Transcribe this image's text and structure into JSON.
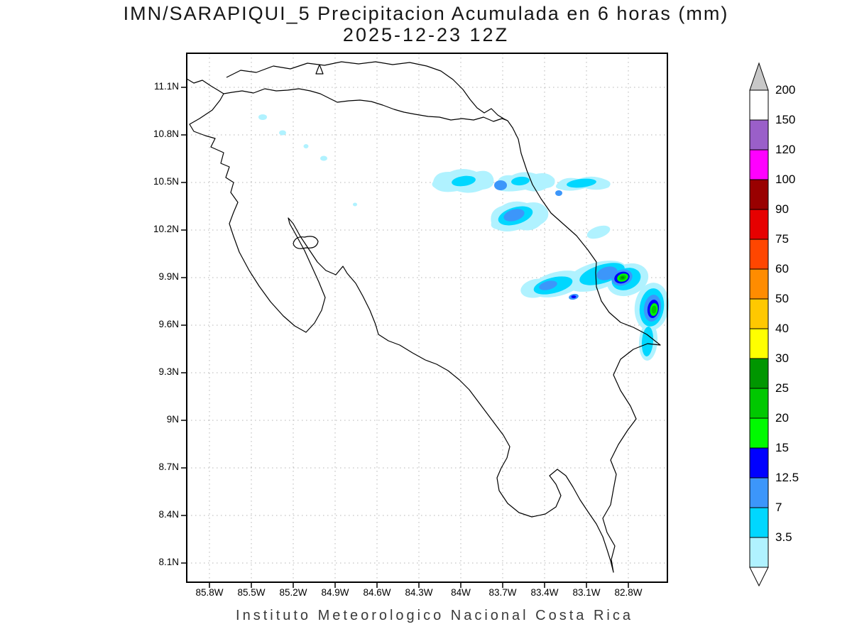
{
  "title": "IMN/SARAPIQUI_5 Precipitacion Acumulada en 6 horas (mm)",
  "subtitle": "2025-12-23 12Z",
  "footer": "Instituto Meteorologico Nacional Costa Rica",
  "map": {
    "lat_ticks": [
      "11.1N",
      "10.8N",
      "10.5N",
      "10.2N",
      "9.9N",
      "9.6N",
      "9.3N",
      "9N",
      "8.7N",
      "8.4N",
      "8.1N"
    ],
    "lon_ticks": [
      "85.8W",
      "85.5W",
      "85.2W",
      "84.9W",
      "84.6W",
      "84.3W",
      "84W",
      "83.7W",
      "83.4W",
      "83.1W",
      "82.8W"
    ],
    "grid_color": "#b4b4b4",
    "coastline_color": "#000000"
  },
  "palette": {
    "lt": "#b0f2ff",
    "cy": "#00d7ff",
    "bl": "#3c96fa",
    "db": "#0000ff",
    "g3": "#00fa00",
    "g2": "#00c800",
    "g1": "#009600"
  },
  "colorbar": {
    "labels_top_to_bottom": [
      "200",
      "150",
      "120",
      "100",
      "90",
      "75",
      "60",
      "50",
      "40",
      "30",
      "25",
      "20",
      "15",
      "12.5",
      "7",
      "3.5"
    ],
    "band_colors_top_to_bottom": [
      "#ffffff",
      "#9a5fc9",
      "#ff00ff",
      "#990000",
      "#e60000",
      "#ff4600",
      "#ff8c00",
      "#ffc800",
      "#ffff00",
      "#009600",
      "#00c800",
      "#00fa00",
      "#0000ff",
      "#3c96fa",
      "#00d7ff",
      "#b0f2ff"
    ],
    "arrow_top_color": "#c8c8c8",
    "arrow_bottom_color": "#ffffff"
  },
  "chart_data": {
    "type": "heatmap",
    "subtype": "filled-contour precipitation map over coastline outline",
    "model": "IMN/SARAPIQUI_5",
    "variable": "Precipitacion Acumulada en 6 horas",
    "unit": "mm",
    "valid_time": "2025-12-23 12Z",
    "region": "Costa Rica",
    "x_ticks": [
      "85.8W",
      "85.5W",
      "85.2W",
      "84.9W",
      "84.6W",
      "84.3W",
      "84W",
      "83.7W",
      "83.4W",
      "83.1W",
      "82.8W"
    ],
    "y_ticks": [
      "11.1N",
      "10.8N",
      "10.5N",
      "10.2N",
      "9.9N",
      "9.6N",
      "9.3N",
      "9N",
      "8.7N",
      "8.4N",
      "8.1N"
    ],
    "lon_range_deg_w": [
      85.96,
      82.52
    ],
    "lat_range_deg_n": [
      7.98,
      11.31
    ],
    "contour_levels_mm": [
      3.5,
      7,
      12.5,
      15,
      20,
      25,
      30,
      40,
      50,
      60,
      75,
      90,
      100,
      120,
      150,
      200
    ],
    "band_colors_low_to_high": [
      "#b0f2ff",
      "#00d7ff",
      "#3c96fa",
      "#0000ff",
      "#00fa00",
      "#00c800",
      "#009600",
      "#ffff00",
      "#ffc800",
      "#ff8c00",
      "#ff4600",
      "#e60000",
      "#990000",
      "#ff00ff",
      "#9a5fc9",
      "#ffffff",
      "#c8c8c8"
    ],
    "legend_position": "right",
    "grid": true,
    "precipitation_features": [
      {
        "location": "elongated band near 10.5N from 84.1W to 82.9W (north Caribbean, offshore)",
        "peak_range_mm": "7-12.5"
      },
      {
        "location": "cell near 10.35N 83.8W",
        "peak_range_mm": "7-12.5"
      },
      {
        "location": "cluster 9.8-10.0N between 83.5W and 82.7W along Caribbean coast",
        "peak_range_mm": "20-25"
      },
      {
        "location": "strong coastal cell near 9.9N 83.15W with green core",
        "peak_range_mm": "20-25"
      },
      {
        "location": "strong coastal cell near 9.75N 82.85W with green core",
        "peak_range_mm": "20-25"
      },
      {
        "location": "scattered light echoes inland northwest 10.6-10.9N 85.2-85.6W",
        "peak_range_mm": "3.5-7"
      }
    ]
  }
}
